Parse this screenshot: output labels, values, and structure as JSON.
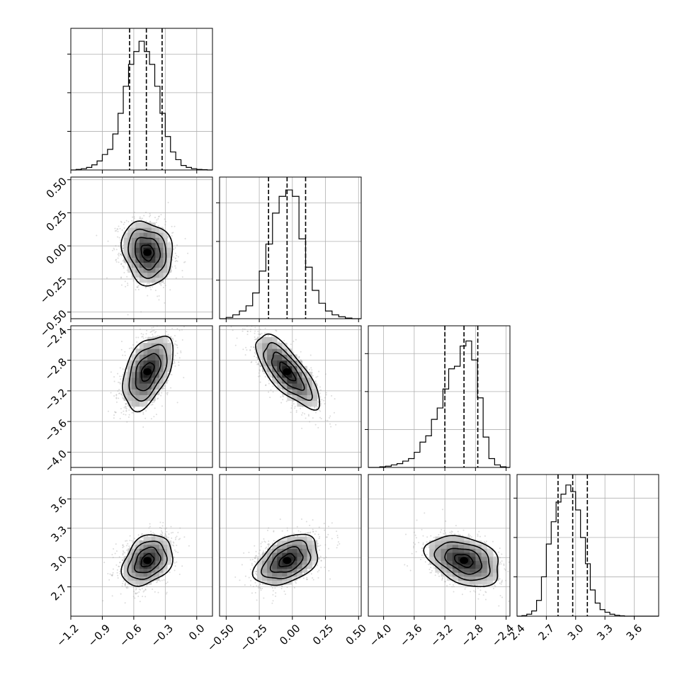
{
  "chart_data": {
    "type": "corner",
    "parameters": [
      {
        "range": [
          -1.2,
          0.15
        ],
        "ticks": [
          -1.2,
          -0.9,
          -0.6,
          -0.3,
          0.0
        ],
        "tick_labels": [
          "−1.2",
          "−0.9",
          "−0.6",
          "−0.3",
          "0.0"
        ],
        "quantiles": [
          -0.64,
          -0.48,
          -0.33
        ],
        "hist_bins": [
          -1.2,
          -1.15,
          -1.1,
          -1.05,
          -1.0,
          -0.95,
          -0.9,
          -0.85,
          -0.8,
          -0.75,
          -0.7,
          -0.65,
          -0.6,
          -0.55,
          -0.5,
          -0.45,
          -0.4,
          -0.35,
          -0.3,
          -0.25,
          -0.2,
          -0.15,
          -0.1,
          -0.05,
          0.0,
          0.05,
          0.1,
          0.15
        ],
        "hist_counts": [
          0,
          0.004,
          0.01,
          0.02,
          0.04,
          0.07,
          0.12,
          0.16,
          0.28,
          0.44,
          0.65,
          0.82,
          0.92,
          1.0,
          0.92,
          0.82,
          0.65,
          0.44,
          0.26,
          0.14,
          0.08,
          0.035,
          0.02,
          0.01,
          0.004,
          0.002,
          0
        ],
        "hist_ymax": 1.1,
        "hist_ticks": [
          0.3,
          0.6,
          0.9
        ]
      },
      {
        "range": [
          -0.55,
          0.52
        ],
        "ticks": [
          -0.5,
          -0.25,
          0.0,
          0.25,
          0.5
        ],
        "tick_labels": [
          "−0.50",
          "−0.25",
          "0.00",
          "0.25",
          "0.50"
        ],
        "quantiles": [
          -0.18,
          -0.04,
          0.1
        ],
        "hist_bins": [
          -0.55,
          -0.5,
          -0.45,
          -0.4,
          -0.35,
          -0.3,
          -0.25,
          -0.2,
          -0.15,
          -0.1,
          -0.05,
          0.0,
          0.05,
          0.1,
          0.15,
          0.2,
          0.25,
          0.3,
          0.35,
          0.4,
          0.45,
          0.5,
          0.52
        ],
        "hist_counts": [
          0,
          0.01,
          0.03,
          0.06,
          0.1,
          0.2,
          0.37,
          0.58,
          0.82,
          0.95,
          1.0,
          0.95,
          0.62,
          0.4,
          0.22,
          0.12,
          0.06,
          0.03,
          0.015,
          0.005,
          0,
          0
        ],
        "hist_ymax": 1.1,
        "hist_ticks": [
          0.3,
          0.6,
          0.9
        ]
      },
      {
        "range": [
          -4.2,
          -2.35
        ],
        "ticks": [
          -4.0,
          -3.6,
          -3.2,
          -2.8,
          -2.4
        ],
        "tick_labels": [
          "−4.0",
          "−3.6",
          "−3.2",
          "−2.8",
          "−2.4"
        ],
        "quantiles": [
          -3.2,
          -2.95,
          -2.77
        ],
        "hist_bins": [
          -4.2,
          -4.125,
          -4.05,
          -3.975,
          -3.9,
          -3.825,
          -3.75,
          -3.675,
          -3.6,
          -3.525,
          -3.45,
          -3.375,
          -3.3,
          -3.225,
          -3.15,
          -3.075,
          -3.0,
          -2.925,
          -2.85,
          -2.775,
          -2.7,
          -2.625,
          -2.55,
          -2.475,
          -2.4,
          -2.35
        ],
        "hist_counts": [
          0,
          0,
          0.005,
          0.01,
          0.02,
          0.03,
          0.05,
          0.07,
          0.12,
          0.2,
          0.25,
          0.38,
          0.47,
          0.62,
          0.78,
          0.8,
          0.96,
          1.0,
          0.85,
          0.55,
          0.24,
          0.07,
          0.02,
          0.005,
          0
        ],
        "hist_ymax": 1.12,
        "hist_ticks": [
          0.3,
          0.6,
          0.9
        ]
      },
      {
        "range": [
          2.4,
          3.85
        ],
        "ticks": [
          2.7,
          3.0,
          3.3,
          3.6
        ],
        "tick_labels": [
          "2.4",
          "2.7",
          "3.0",
          "3.3",
          "3.6"
        ],
        "tick_values_for_labels": [
          2.4,
          2.7,
          3.0,
          3.3,
          3.6
        ],
        "quantiles": [
          2.82,
          2.97,
          3.12
        ],
        "hist_bins": [
          2.4,
          2.45,
          2.5,
          2.55,
          2.6,
          2.65,
          2.7,
          2.75,
          2.8,
          2.85,
          2.9,
          2.95,
          3.0,
          3.05,
          3.1,
          3.15,
          3.2,
          3.25,
          3.3,
          3.35,
          3.4,
          3.45,
          3.5,
          3.55,
          3.6,
          3.65,
          3.85
        ],
        "hist_counts": [
          0,
          0.004,
          0.015,
          0.04,
          0.12,
          0.3,
          0.55,
          0.72,
          0.87,
          0.93,
          1.0,
          0.95,
          0.81,
          0.6,
          0.4,
          0.2,
          0.1,
          0.05,
          0.03,
          0.015,
          0.007,
          0.003,
          0,
          0,
          0,
          0
        ],
        "hist_ymax": 1.08,
        "hist_ticks": [
          0.3,
          0.6,
          0.9
        ]
      }
    ],
    "row_tick_labels": [
      [],
      [
        "0.50",
        "0.25",
        "0.00",
        "−0.25",
        "−0.50"
      ],
      [
        "−2.4",
        "−2.8",
        "−3.2",
        "−3.6",
        "−4.0"
      ],
      [
        "3.6",
        "3.3",
        "3.0",
        "2.7"
      ]
    ],
    "row_tick_values": [
      [],
      [
        0.5,
        0.25,
        0.0,
        -0.25,
        -0.5
      ],
      [
        -2.4,
        -2.8,
        -3.2,
        -3.6,
        -4.0
      ],
      [
        3.6,
        3.3,
        3.0,
        2.7
      ]
    ],
    "bottom_tick_labels": [
      [
        "−1.2",
        "−0.9",
        "−0.6",
        "−0.3",
        "0.0"
      ],
      [
        "−0.50",
        "−0.25",
        "0.00",
        "0.25",
        "0.50"
      ],
      [
        "−4.0",
        "−3.6",
        "−3.2",
        "−2.8",
        "−2.4"
      ],
      [
        "2.4",
        "2.7",
        "3.0",
        "3.3",
        "3.6"
      ]
    ],
    "pairs": [
      {
        "x": 0,
        "y": 1,
        "mean": [
          -0.47,
          -0.05
        ],
        "sd": [
          0.12,
          0.12
        ],
        "rho": -0.15
      },
      {
        "x": 0,
        "y": 2,
        "mean": [
          -0.47,
          -2.95
        ],
        "sd": [
          0.12,
          0.24
        ],
        "rho": 0.45
      },
      {
        "x": 1,
        "y": 2,
        "mean": [
          -0.04,
          -2.95
        ],
        "sd": [
          0.12,
          0.24
        ],
        "rho": -0.75
      },
      {
        "x": 0,
        "y": 3,
        "mean": [
          -0.47,
          2.97
        ],
        "sd": [
          0.12,
          0.13
        ],
        "rho": 0.3
      },
      {
        "x": 1,
        "y": 3,
        "mean": [
          -0.04,
          2.97
        ],
        "sd": [
          0.12,
          0.13
        ],
        "rho": 0.42
      },
      {
        "x": 2,
        "y": 3,
        "mean": [
          -2.95,
          2.97
        ],
        "sd": [
          0.24,
          0.13
        ],
        "rho": -0.35
      }
    ],
    "contour_levels_sigma": [
      0.5,
      1.0,
      1.5,
      2.0
    ],
    "grid": true,
    "colors": {
      "line": "#000000",
      "points": "#9a9a9a",
      "grid": "#b0b0b0"
    }
  }
}
